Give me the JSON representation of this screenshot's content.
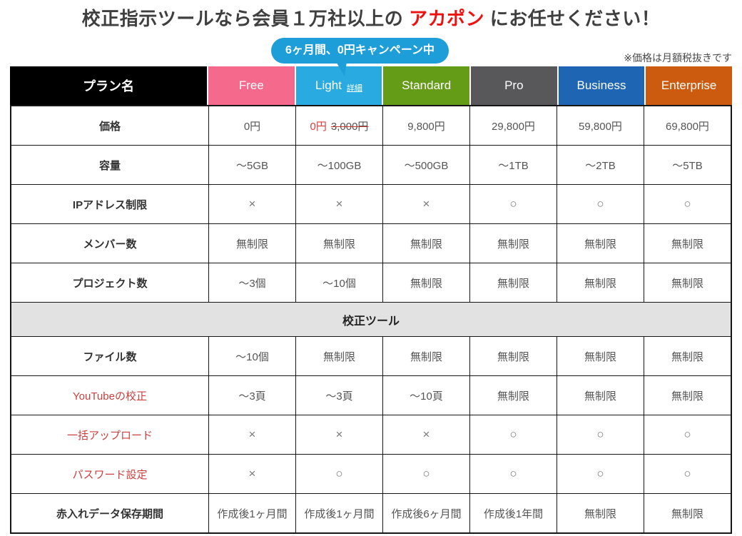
{
  "page": {
    "title": {
      "prefix": "校正指示ツールなら会員１万社以上の ",
      "brand": "アカポン",
      "suffix": " にお任せください！"
    },
    "campaign_badge": "6ヶ月間、0円キャンペーン中",
    "price_note": "※価格は月額税抜きです"
  },
  "colors": {
    "brand_red": "#ee1111",
    "badge_blue": "#1d9ed9",
    "plan_name_bg": "#000000",
    "free": "#f4698c",
    "light": "#29abe2",
    "standard": "#649b17",
    "pro": "#58585a",
    "business": "#1e66b3",
    "enterprise": "#cc5a0f",
    "section_bg": "#e2e2e2",
    "red_label": "#c9403f"
  },
  "table": {
    "label_header": "プラン名",
    "plans": [
      {
        "name": "Free",
        "color_key": "free"
      },
      {
        "name": "Light",
        "color_key": "light",
        "link": "詳細"
      },
      {
        "name": "Standard",
        "color_key": "standard"
      },
      {
        "name": "Pro",
        "color_key": "pro"
      },
      {
        "name": "Business",
        "color_key": "business"
      },
      {
        "name": "Enterprise",
        "color_key": "enterprise"
      }
    ],
    "rows": [
      {
        "label": "価格",
        "cells": [
          "0円",
          {
            "promo": "0円",
            "original": "3,000円"
          },
          "9,800円",
          "29,800円",
          "59,800円",
          "69,800円"
        ]
      },
      {
        "label": "容量",
        "cells": [
          "～5GB",
          "～100GB",
          "～500GB",
          "～1TB",
          "～2TB",
          "～5TB"
        ]
      },
      {
        "label": "IPアドレス制限",
        "cells": [
          "×",
          "×",
          "×",
          "○",
          "○",
          "○"
        ]
      },
      {
        "label": "メンバー数",
        "cells": [
          "無制限",
          "無制限",
          "無制限",
          "無制限",
          "無制限",
          "無制限"
        ]
      },
      {
        "label": "プロジェクト数",
        "cells": [
          "～3個",
          "～10個",
          "無制限",
          "無制限",
          "無制限",
          "無制限"
        ]
      },
      {
        "section": "校正ツール"
      },
      {
        "label": "ファイル数",
        "cells": [
          "～10個",
          "無制限",
          "無制限",
          "無制限",
          "無制限",
          "無制限"
        ]
      },
      {
        "label": "YouTubeの校正",
        "label_color": "red",
        "cells": [
          "～3頁",
          "～3頁",
          "～10頁",
          "無制限",
          "無制限",
          "無制限"
        ]
      },
      {
        "label": "一括アップロード",
        "label_color": "red",
        "cells": [
          "×",
          "×",
          "×",
          "○",
          "○",
          "○"
        ]
      },
      {
        "label": "パスワード設定",
        "label_color": "red",
        "cells": [
          "×",
          "○",
          "○",
          "○",
          "○",
          "○"
        ]
      },
      {
        "label": "赤入れデータ保存期間",
        "cells": [
          "作成後1ヶ月間",
          "作成後1ヶ月間",
          "作成後6ヶ月間",
          "作成後1年間",
          "無制限",
          "無制限"
        ]
      }
    ]
  }
}
